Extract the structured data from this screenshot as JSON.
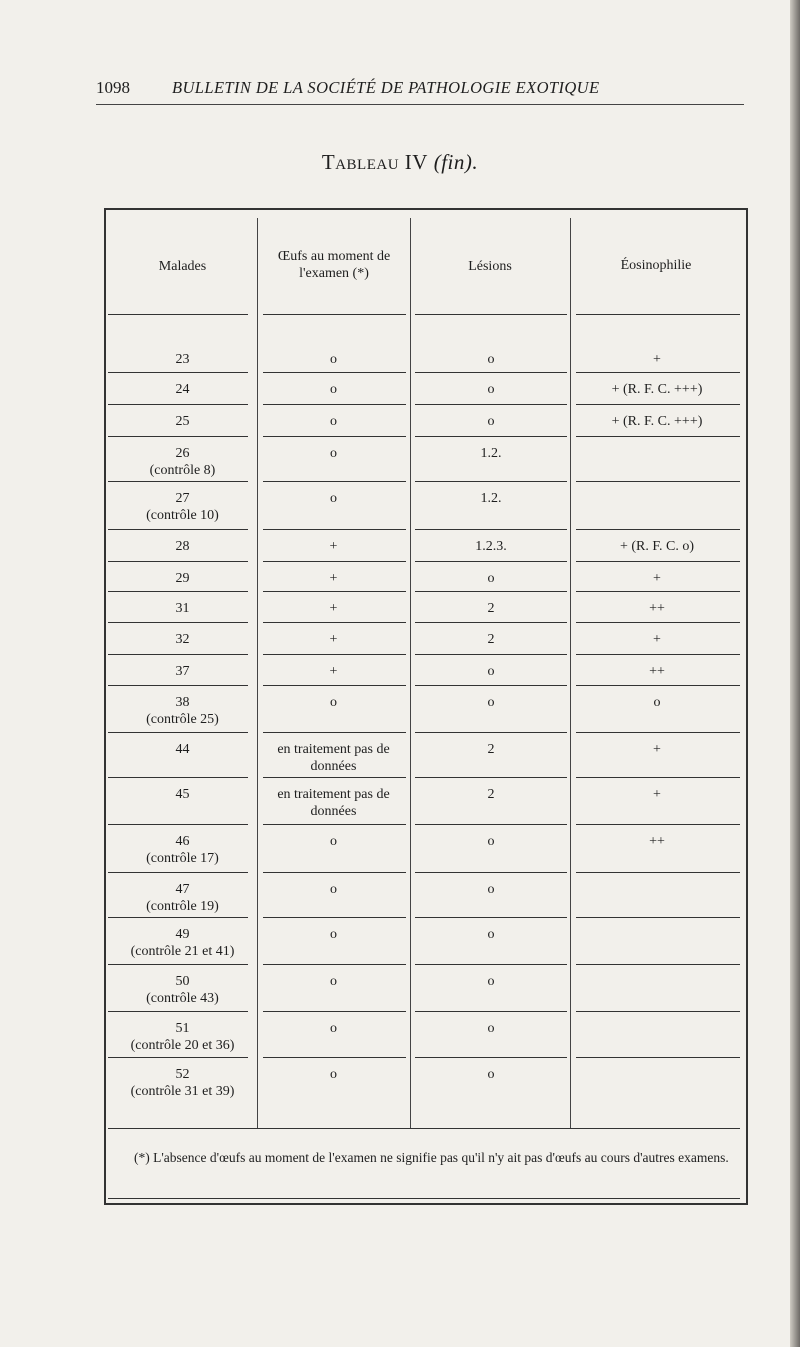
{
  "header": {
    "page_number": "1098",
    "running_title": "BULLETIN DE LA SOCIÉTÉ DE PATHOLOGIE EXOTIQUE"
  },
  "table": {
    "title_main": "Tableau IV",
    "title_suffix": "(fin).",
    "columns": [
      "Malades",
      "Œufs au moment de l'examen (*)",
      "Lésions",
      "Éosinophilie"
    ],
    "rows": [
      {
        "malade": "23",
        "controle": "",
        "oeufs": "o",
        "lesions": "o",
        "eosinophilie": "+"
      },
      {
        "malade": "24",
        "controle": "",
        "oeufs": "o",
        "lesions": "o",
        "eosinophilie": "+ (R. F. C. +++)"
      },
      {
        "malade": "25",
        "controle": "",
        "oeufs": "o",
        "lesions": "o",
        "eosinophilie": "+ (R. F. C. +++)"
      },
      {
        "malade": "26",
        "controle": "(contrôle 8)",
        "oeufs": "o",
        "lesions": "1.2.",
        "eosinophilie": ""
      },
      {
        "malade": "27",
        "controle": "(contrôle 10)",
        "oeufs": "o",
        "lesions": "1.2.",
        "eosinophilie": ""
      },
      {
        "malade": "28",
        "controle": "",
        "oeufs": "+",
        "lesions": "1.2.3.",
        "eosinophilie": "+ (R. F. C. o)"
      },
      {
        "malade": "29",
        "controle": "",
        "oeufs": "+",
        "lesions": "o",
        "eosinophilie": "+"
      },
      {
        "malade": "31",
        "controle": "",
        "oeufs": "+",
        "lesions": "2",
        "eosinophilie": "++"
      },
      {
        "malade": "32",
        "controle": "",
        "oeufs": "+",
        "lesions": "2",
        "eosinophilie": "+"
      },
      {
        "malade": "37",
        "controle": "",
        "oeufs": "+",
        "lesions": "o",
        "eosinophilie": "++"
      },
      {
        "malade": "38",
        "controle": "(contrôle 25)",
        "oeufs": "o",
        "lesions": "o",
        "eosinophilie": "o"
      },
      {
        "malade": "44",
        "controle": "",
        "oeufs": "en traitement pas de données",
        "lesions": "2",
        "eosinophilie": "+"
      },
      {
        "malade": "45",
        "controle": "",
        "oeufs": "en traitement pas de données",
        "lesions": "2",
        "eosinophilie": "+"
      },
      {
        "malade": "46",
        "controle": "(contrôle 17)",
        "oeufs": "o",
        "lesions": "o",
        "eosinophilie": "++"
      },
      {
        "malade": "47",
        "controle": "(contrôle 19)",
        "oeufs": "o",
        "lesions": "o",
        "eosinophilie": ""
      },
      {
        "malade": "49",
        "controle": "(contrôle 21 et 41)",
        "oeufs": "o",
        "lesions": "o",
        "eosinophilie": ""
      },
      {
        "malade": "50",
        "controle": "(contrôle 43)",
        "oeufs": "o",
        "lesions": "o",
        "eosinophilie": ""
      },
      {
        "malade": "51",
        "controle": "(contrôle 20 et 36)",
        "oeufs": "o",
        "lesions": "o",
        "eosinophilie": ""
      },
      {
        "malade": "52",
        "controle": "(contrôle 31 et 39)",
        "oeufs": "o",
        "lesions": "o",
        "eosinophilie": ""
      }
    ],
    "footnote": "(*) L'absence d'œufs au moment de l'examen ne signifie pas qu'il n'y ait pas d'œufs au cours d'autres examens."
  }
}
